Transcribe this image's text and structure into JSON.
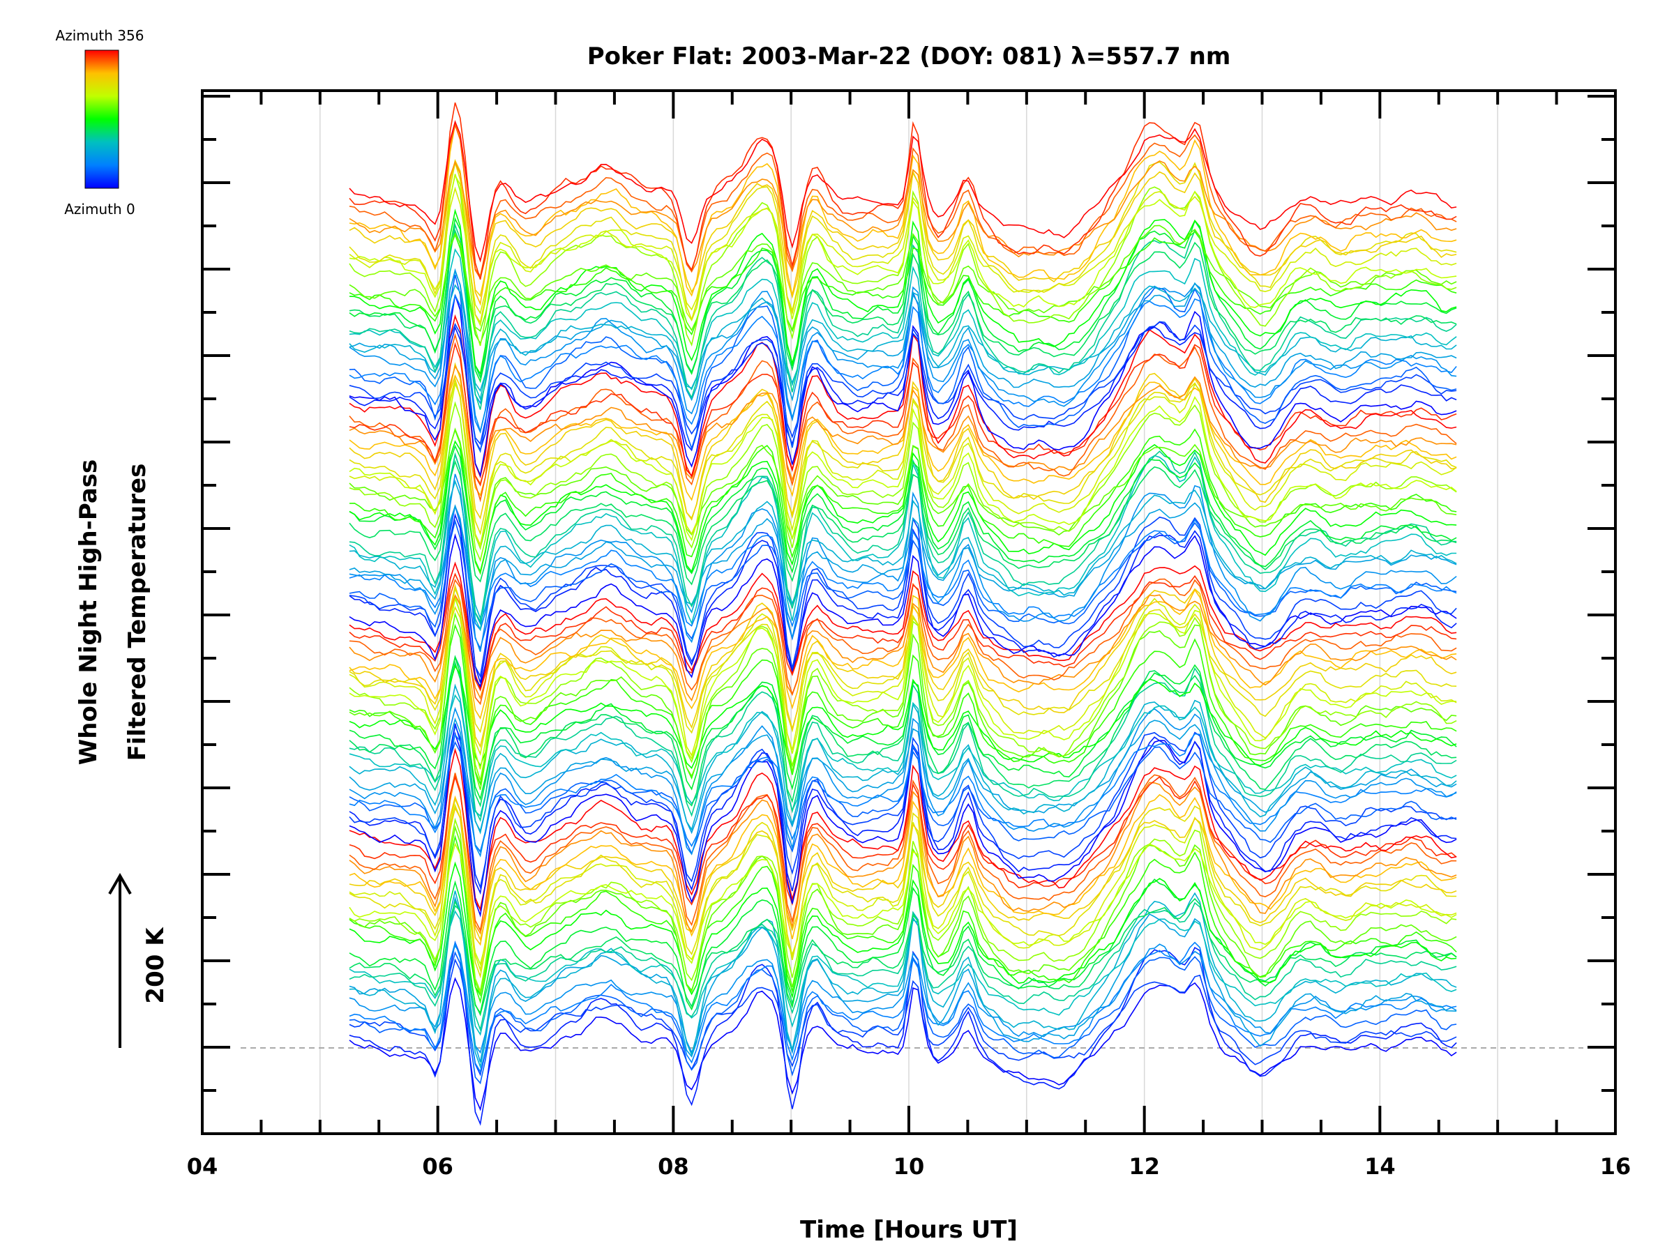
{
  "chart_data": {
    "type": "line",
    "title": "Poker Flat: 2003-Mar-22 (DOY: 081) λ=557.7 nm",
    "xlabel": "Time [Hours UT]",
    "ylabel_line1": "Whole Night High-Pass",
    "ylabel_line2": "Filtered Temperatures",
    "scale_label": "200 K",
    "xlim": [
      4,
      16
    ],
    "x_ticks": [
      "04",
      "06",
      "08",
      "10",
      "12",
      "14",
      "16"
    ],
    "x_minor_tick_step": 0.5,
    "vertical_gridlines_at": [
      5,
      6,
      7,
      8,
      9,
      10,
      11,
      12,
      13,
      14,
      15
    ],
    "data_time_range": [
      5.25,
      14.65
    ],
    "baseline_dashed": true,
    "colorbar": {
      "max_label": "Azimuth 356",
      "min_label": "Azimuth 0",
      "colormap": "rainbow (blue → red)",
      "colors": [
        "#0000ff",
        "#0080ff",
        "#00c0c0",
        "#00ff00",
        "#c0ff00",
        "#ffc000",
        "#ff0000"
      ]
    },
    "stack_layout": "waterfall: one high-pass filtered temperature trace per azimuth, vertically offset, colored by azimuth",
    "series_count": 100,
    "key_features_hours": [
      6.15,
      6.35,
      8.15,
      8.75,
      9.0,
      10.05,
      10.5,
      11.25,
      12.1,
      12.45,
      13.0
    ],
    "grid": true
  },
  "colors": {
    "axis": "#000000",
    "grid": "#d8d8d8",
    "baseline": "#aaaaaa"
  }
}
